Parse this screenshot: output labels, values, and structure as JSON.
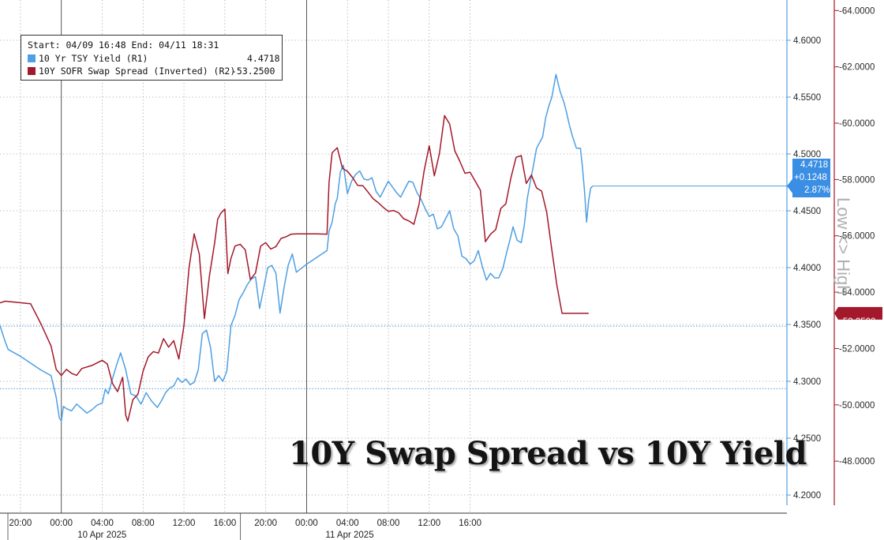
{
  "chart_data": {
    "type": "line",
    "title": "10Y Swap Spread vs 10Y Yield",
    "legend": {
      "header": "Start: 04/09 16:48 End: 04/11 18:31",
      "placement": "top-left",
      "items": [
        {
          "label": "10 Yr TSY Yield (R1)",
          "value": "4.4718",
          "color": "#4f9fe3"
        },
        {
          "label": "10Y SOFR Swap Spread (Inverted) (R2)",
          "value": "-53.2500",
          "color": "#a3182a"
        }
      ]
    },
    "x_axis": {
      "ticks": [
        "20:00",
        "00:00",
        "04:00",
        "08:00",
        "12:00",
        "16:00",
        "20:00",
        "00:00",
        "04:00",
        "08:00",
        "12:00",
        "16:00"
      ],
      "date_labels": [
        "10 Apr 2025",
        "11 Apr 2025"
      ],
      "range": [
        -6.0,
        71.0
      ],
      "hour_origin_label": "00:00 10 Apr 2025"
    },
    "y_axis_r1": {
      "label": "10 Yr TSY Yield",
      "ticks": [
        "4.2000",
        "4.2500",
        "4.3000",
        "4.3500",
        "4.4000",
        "4.4500",
        "4.5000",
        "4.5500",
        "4.6000"
      ],
      "range": [
        4.1805,
        4.615
      ]
    },
    "y_axis_r2": {
      "label": "10Y SOFR Swap Spread (Inverted)",
      "inverted": true,
      "ticks": [
        "-48.0000",
        "-50.0000",
        "-52.0000",
        "-54.0000",
        "-56.0000",
        "-58.0000",
        "-60.0000",
        "-62.0000",
        "-64.0000"
      ],
      "range": [
        -46.7,
        -64.8
      ]
    },
    "side_label": "Low <> High",
    "grid": true,
    "reference_lines": [
      4.3485,
      4.2935
    ],
    "last_values": {
      "yield": {
        "value": "4.4718",
        "change": "+0.1248",
        "pct": "2.87%"
      },
      "spread": {
        "value": "-53.2500"
      }
    },
    "series": [
      {
        "name": "10 Yr TSY Yield (R1)",
        "axis": "R1",
        "color": "#4f9fe3",
        "x": [
          -6,
          -5.5,
          -5.2,
          -4,
          -3,
          -2,
          -1,
          -0.5,
          -0.2,
          0,
          0.2,
          0.5,
          1,
          1.5,
          2,
          2.5,
          3,
          3.5,
          4,
          4.3,
          4.6,
          5,
          5.4,
          5.8,
          6.3,
          6.8,
          7.3,
          7.8,
          8.3,
          8.8,
          9.1,
          9.4,
          9.8,
          10.2,
          10.6,
          11,
          11.4,
          11.8,
          12.2,
          12.6,
          13,
          13.4,
          13.8,
          14.2,
          14.6,
          15,
          15.4,
          15.8,
          16.2,
          16.6,
          17,
          17.4,
          17.8,
          18.2,
          18.6,
          19,
          19.4,
          19.8,
          20.2,
          20.6,
          21,
          21.4,
          21.8,
          22.2,
          22.6,
          23,
          24,
          25,
          26,
          26.2,
          26.5,
          26.8,
          27,
          27.3,
          27.6,
          28,
          28.4,
          28.8,
          29.2,
          29.6,
          30,
          30.4,
          30.8,
          31.2,
          31.6,
          32,
          32.4,
          32.8,
          33.2,
          33.6,
          34,
          34.4,
          34.8,
          35.2,
          35.6,
          36,
          36.4,
          36.8,
          37.2,
          37.6,
          38,
          38.4,
          38.8,
          39.2,
          39.6,
          40,
          40.4,
          40.8,
          41.2,
          41.6,
          42,
          42.4,
          42.8,
          43.2,
          43.6,
          44,
          44.2,
          44.6,
          45,
          45.3,
          45.6,
          45.9,
          46.2,
          46.5,
          46.8,
          47.1,
          47.4,
          47.7,
          48,
          48.4,
          48.8,
          49.2,
          49.4,
          49.7,
          50,
          50.4,
          50.8,
          51,
          51.2,
          51.4,
          51.6,
          51.8,
          52
        ],
        "y": [
          4.349,
          4.335,
          4.328,
          4.322,
          4.316,
          4.31,
          4.305,
          4.286,
          4.268,
          4.265,
          4.278,
          4.276,
          4.274,
          4.28,
          4.276,
          4.272,
          4.275,
          4.279,
          4.281,
          4.293,
          4.289,
          4.302,
          4.314,
          4.325,
          4.31,
          4.289,
          4.287,
          4.28,
          4.29,
          4.283,
          4.28,
          4.277,
          4.283,
          4.29,
          4.294,
          4.296,
          4.303,
          4.299,
          4.302,
          4.297,
          4.299,
          4.31,
          4.342,
          4.345,
          4.33,
          4.3,
          4.305,
          4.3,
          4.309,
          4.349,
          4.358,
          4.372,
          4.378,
          4.385,
          4.39,
          4.392,
          4.364,
          4.382,
          4.4,
          4.402,
          4.395,
          4.36,
          4.383,
          4.402,
          4.412,
          4.396,
          4.403,
          4.409,
          4.415,
          4.432,
          4.44,
          4.456,
          4.461,
          4.484,
          4.49,
          4.465,
          4.476,
          4.482,
          4.485,
          4.478,
          4.477,
          4.479,
          4.467,
          4.462,
          4.469,
          4.476,
          4.471,
          4.466,
          4.462,
          4.469,
          4.476,
          4.475,
          4.466,
          4.46,
          4.452,
          4.445,
          4.447,
          4.434,
          4.436,
          4.443,
          4.45,
          4.434,
          4.428,
          4.41,
          4.408,
          4.403,
          4.406,
          4.415,
          4.401,
          4.389,
          4.395,
          4.391,
          4.391,
          4.399,
          4.414,
          4.428,
          4.436,
          4.424,
          4.422,
          4.437,
          4.461,
          4.476,
          4.49,
          4.505,
          4.51,
          4.515,
          4.532,
          4.542,
          4.55,
          4.57,
          4.555,
          4.545,
          4.538,
          4.526,
          4.516,
          4.505,
          4.505,
          4.488,
          4.467,
          4.44,
          4.459,
          4.47,
          4.4718
        ]
      },
      {
        "name": "10Y SOFR Swap Spread (Inverted) (R2)",
        "axis": "R2",
        "color": "#a3182a",
        "x": [
          -6,
          -5.5,
          -3,
          -2,
          -1,
          -0.5,
          0,
          0.5,
          1,
          1.5,
          2,
          3,
          4,
          4.5,
          5,
          5.5,
          6,
          6.3,
          6.5,
          7,
          7.5,
          8,
          8.5,
          9,
          9.5,
          10,
          10.5,
          11,
          11.5,
          12,
          12.5,
          13,
          13.5,
          14,
          14.5,
          15,
          15.3,
          15.6,
          16,
          16.3,
          16.6,
          17,
          17.5,
          18,
          18.5,
          19,
          19.5,
          20,
          20.5,
          21,
          21.5,
          22,
          22.5,
          23,
          24,
          25,
          26,
          26.2,
          26.5,
          27,
          27.5,
          28,
          28.5,
          29,
          29.5,
          30,
          30.5,
          31,
          31.5,
          32,
          32.5,
          33,
          33.5,
          34,
          34.5,
          35,
          35.5,
          36,
          36.5,
          37,
          37.5,
          38,
          38.5,
          39,
          39.5,
          40,
          40.5,
          41,
          41.5,
          42,
          42.5,
          43,
          43.5,
          44,
          44.5,
          45,
          45.5,
          46,
          46.5,
          47,
          47.5,
          48,
          48.5,
          49,
          49.5,
          50,
          50.2,
          50.5,
          50.8,
          51,
          51.2,
          51.4,
          51.6
        ],
        "y": [
          -53.62,
          -53.68,
          -53.59,
          -52.88,
          -52.09,
          -51.26,
          -51.04,
          -51.26,
          -51.12,
          -51.05,
          -51.29,
          -51.4,
          -51.58,
          -51.45,
          -50.77,
          -50.47,
          -50.98,
          -49.63,
          -49.42,
          -50.18,
          -50.38,
          -51.2,
          -51.7,
          -51.89,
          -51.84,
          -52.35,
          -52.05,
          -52.28,
          -51.63,
          -52.82,
          -54.87,
          -56.07,
          -55.35,
          -53.06,
          -54.59,
          -55.74,
          -56.59,
          -56.8,
          -56.95,
          -54.66,
          -55.2,
          -55.64,
          -55.7,
          -55.5,
          -54.45,
          -54.68,
          -55.63,
          -55.76,
          -55.53,
          -55.62,
          -55.91,
          -55.97,
          -56.06,
          -56.07,
          -56.07,
          -56.07,
          -56.06,
          -57.9,
          -58.95,
          -59.13,
          -58.4,
          -58.29,
          -58.07,
          -57.79,
          -57.78,
          -57.56,
          -57.32,
          -57.18,
          -57.01,
          -56.87,
          -56.9,
          -56.82,
          -56.61,
          -56.53,
          -56.41,
          -57.12,
          -58.3,
          -59.2,
          -58.13,
          -58.93,
          -60.27,
          -59.97,
          -59.02,
          -58.64,
          -58.22,
          -58.26,
          -57.94,
          -57.62,
          -55.79,
          -56.06,
          -56.22,
          -56.97,
          -57.14,
          -58.07,
          -58.79,
          -58.85,
          -57.86,
          -58.16,
          -57.7,
          -57.59,
          -56.83,
          -55.49,
          -54.22,
          -53.25,
          -53.25,
          -53.25,
          -53.25,
          -53.25,
          -53.25,
          -53.25,
          -53.25,
          -53.25,
          -53.25
        ]
      }
    ]
  }
}
